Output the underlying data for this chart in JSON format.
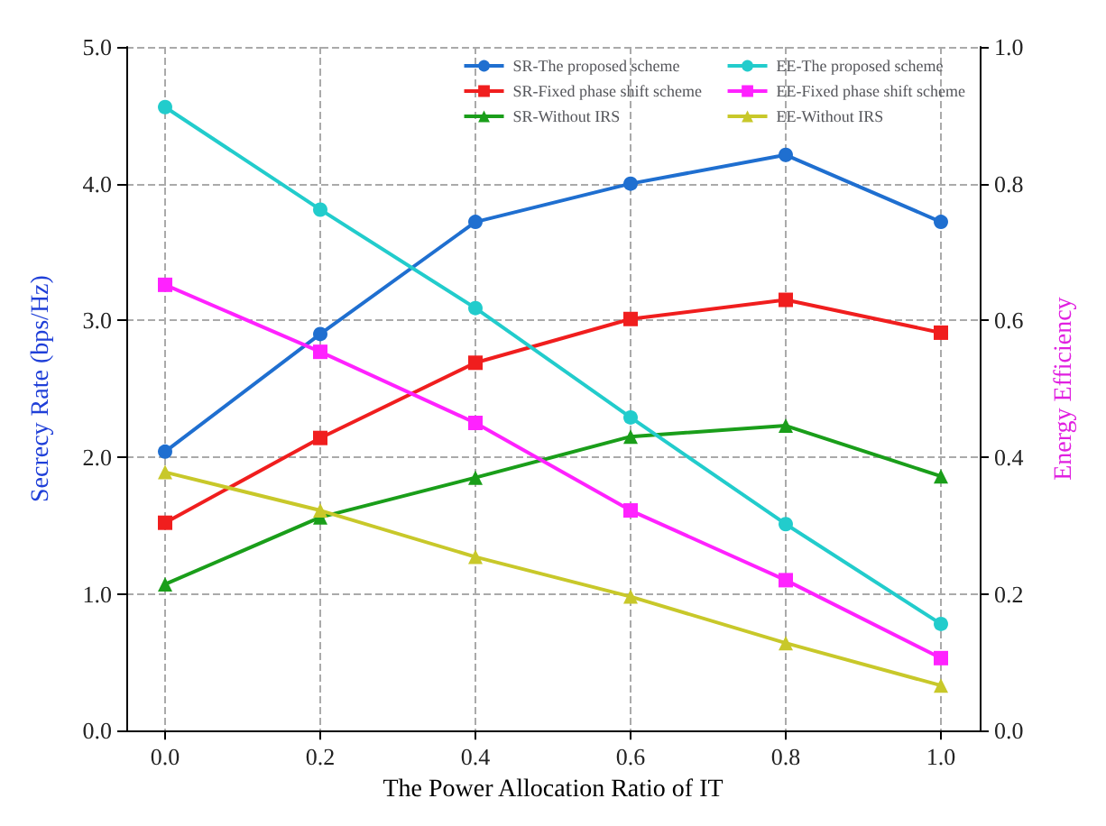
{
  "chart_data": {
    "type": "line",
    "xlabel": "The Power Allocation Ratio of IT",
    "ylabel": "Secrecy Rate (bps/Hz)",
    "y2label": "Energy Efficiency",
    "x": [
      0,
      0.2,
      0.4,
      0.6,
      0.8,
      1.0
    ],
    "xlim": [
      -0.05,
      1.05
    ],
    "xticks": [
      {
        "value": 0,
        "label": "0.0"
      },
      {
        "value": 0.2,
        "label": "0.2"
      },
      {
        "value": 0.4,
        "label": "0.4"
      },
      {
        "value": 0.6,
        "label": "0.6"
      },
      {
        "value": 0.8,
        "label": "0.8"
      },
      {
        "value": 1,
        "label": "1.0"
      }
    ],
    "ylim": [
      0,
      5
    ],
    "yticks": [
      {
        "value": 0,
        "label": "0.0"
      },
      {
        "value": 1,
        "label": "1.0"
      },
      {
        "value": 2,
        "label": "2.0"
      },
      {
        "value": 3,
        "label": "3.0"
      },
      {
        "value": 4,
        "label": "4.0"
      },
      {
        "value": 5,
        "label": "5.0"
      }
    ],
    "y2lim": [
      0,
      1
    ],
    "y2ticks": [
      {
        "value": 0,
        "label": "0.0"
      },
      {
        "value": 0.2,
        "label": "0.2"
      },
      {
        "value": 0.4,
        "label": "0.4"
      },
      {
        "value": 0.6,
        "label": "0.6"
      },
      {
        "value": 0.8,
        "label": "0.8"
      },
      {
        "value": 1,
        "label": "1.0"
      }
    ],
    "grid": true,
    "legend": "top right",
    "line_style": "solid",
    "series": [
      {
        "name": "SR-The proposed scheme",
        "color": "#1f6fd0",
        "marker": "circle",
        "values": [
          2.04,
          2.9,
          3.72,
          4.0,
          4.21,
          3.72
        ]
      },
      {
        "name": "SR-Fixed phase shift scheme",
        "color": "#f01e1e",
        "marker": "square",
        "values": [
          1.52,
          2.14,
          2.69,
          3.01,
          3.15,
          2.91
        ]
      },
      {
        "name": "SR-Without IRS",
        "color": "#1a9e1a",
        "marker": "triangle",
        "values": [
          1.07,
          1.56,
          1.85,
          2.15,
          2.23,
          1.86
        ]
      },
      {
        "name": "EE-The proposed scheme",
        "color": "#22cccc",
        "marker": "circle",
        "axis": "y2",
        "values": [
          0.912,
          0.762,
          0.618,
          0.458,
          0.302,
          0.156
        ]
      },
      {
        "name": "EE-Fixed phase shift scheme",
        "color": "#ff22ff",
        "marker": "square",
        "axis": "y2",
        "values": [
          0.652,
          0.554,
          0.45,
          0.322,
          0.22,
          0.106
        ]
      },
      {
        "name": "EE-Without IRS",
        "color": "#c8c82a",
        "marker": "triangle",
        "axis": "y2",
        "values": [
          0.378,
          0.322,
          0.254,
          0.196,
          0.128,
          0.066
        ]
      }
    ]
  }
}
